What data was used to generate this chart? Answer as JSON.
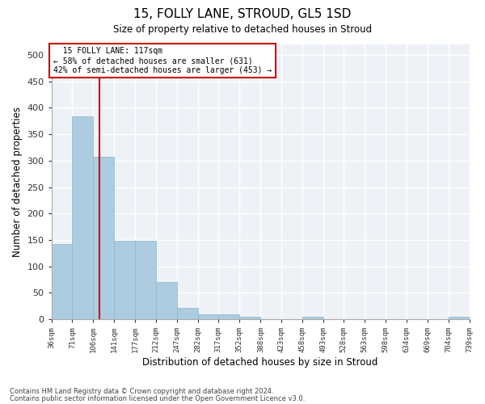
{
  "title": "15, FOLLY LANE, STROUD, GL5 1SD",
  "subtitle": "Size of property relative to detached houses in Stroud",
  "xlabel": "Distribution of detached houses by size in Stroud",
  "ylabel": "Number of detached properties",
  "property_size": 117,
  "property_label": "15 FOLLY LANE: 117sqm",
  "pct_smaller": 58,
  "n_smaller": 631,
  "pct_larger": 42,
  "n_larger": 453,
  "bin_edges": [
    36,
    71,
    106,
    141,
    177,
    212,
    247,
    282,
    317,
    352,
    388,
    423,
    458,
    493,
    528,
    563,
    598,
    634,
    669,
    704,
    739
  ],
  "bar_heights": [
    143,
    384,
    307,
    148,
    148,
    70,
    22,
    10,
    9,
    5,
    0,
    0,
    5,
    0,
    0,
    0,
    0,
    0,
    0,
    5
  ],
  "bar_color": "#aecce0",
  "bar_edgecolor": "#8ab4cc",
  "vline_x": 117,
  "vline_color": "#cc0000",
  "annotation_box_color": "#cc0000",
  "background_color": "#eef2f7",
  "grid_color": "#ffffff",
  "ylim": [
    0,
    520
  ],
  "yticks": [
    0,
    50,
    100,
    150,
    200,
    250,
    300,
    350,
    400,
    450,
    500
  ],
  "footer_line1": "Contains HM Land Registry data © Crown copyright and database right 2024.",
  "footer_line2": "Contains public sector information licensed under the Open Government Licence v3.0."
}
